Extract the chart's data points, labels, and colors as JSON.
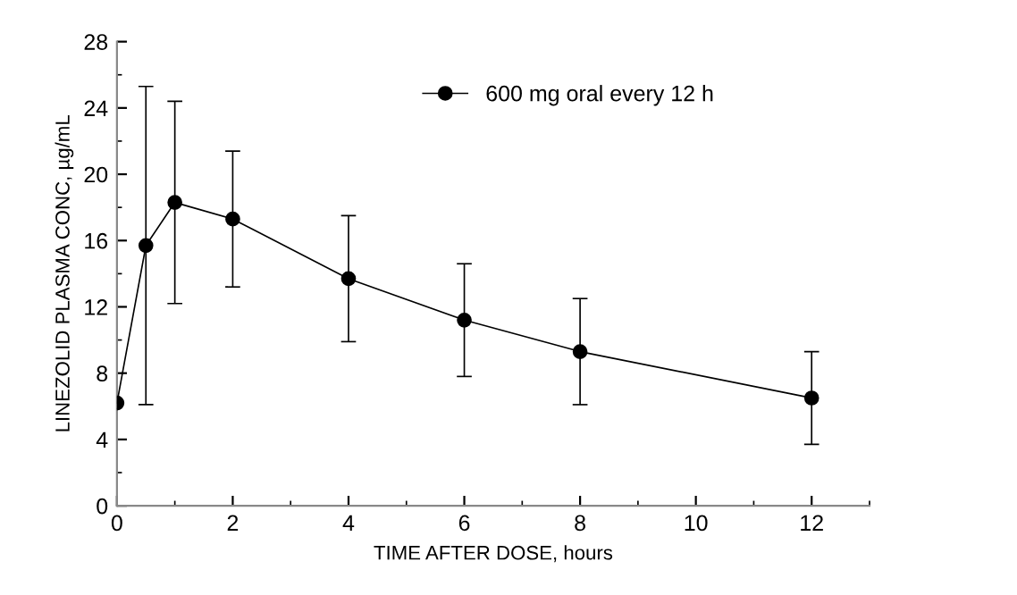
{
  "chart_data": {
    "type": "line",
    "xlabel": "TIME AFTER DOSE, hours",
    "ylabel": "LINEZOLID PLASMA CONC, µg/mL",
    "x": [
      0,
      0.5,
      1,
      2,
      4,
      6,
      8,
      12
    ],
    "series": [
      {
        "name": "600 mg oral every 12 h",
        "color": "#000000",
        "values": [
          6.2,
          15.7,
          18.3,
          17.3,
          13.7,
          11.2,
          9.3,
          6.5
        ],
        "errors": [
          null,
          9.6,
          6.1,
          4.1,
          3.8,
          3.4,
          3.2,
          2.8
        ]
      }
    ],
    "xlim": [
      0,
      13
    ],
    "xticks": [
      0,
      2,
      4,
      6,
      8,
      10,
      12
    ],
    "ylim": [
      0,
      28
    ],
    "yticks": [
      0,
      4,
      8,
      12,
      16,
      20,
      24,
      28
    ],
    "marker": "circle",
    "line_style": "solid",
    "grid": false,
    "legend": "top right"
  }
}
